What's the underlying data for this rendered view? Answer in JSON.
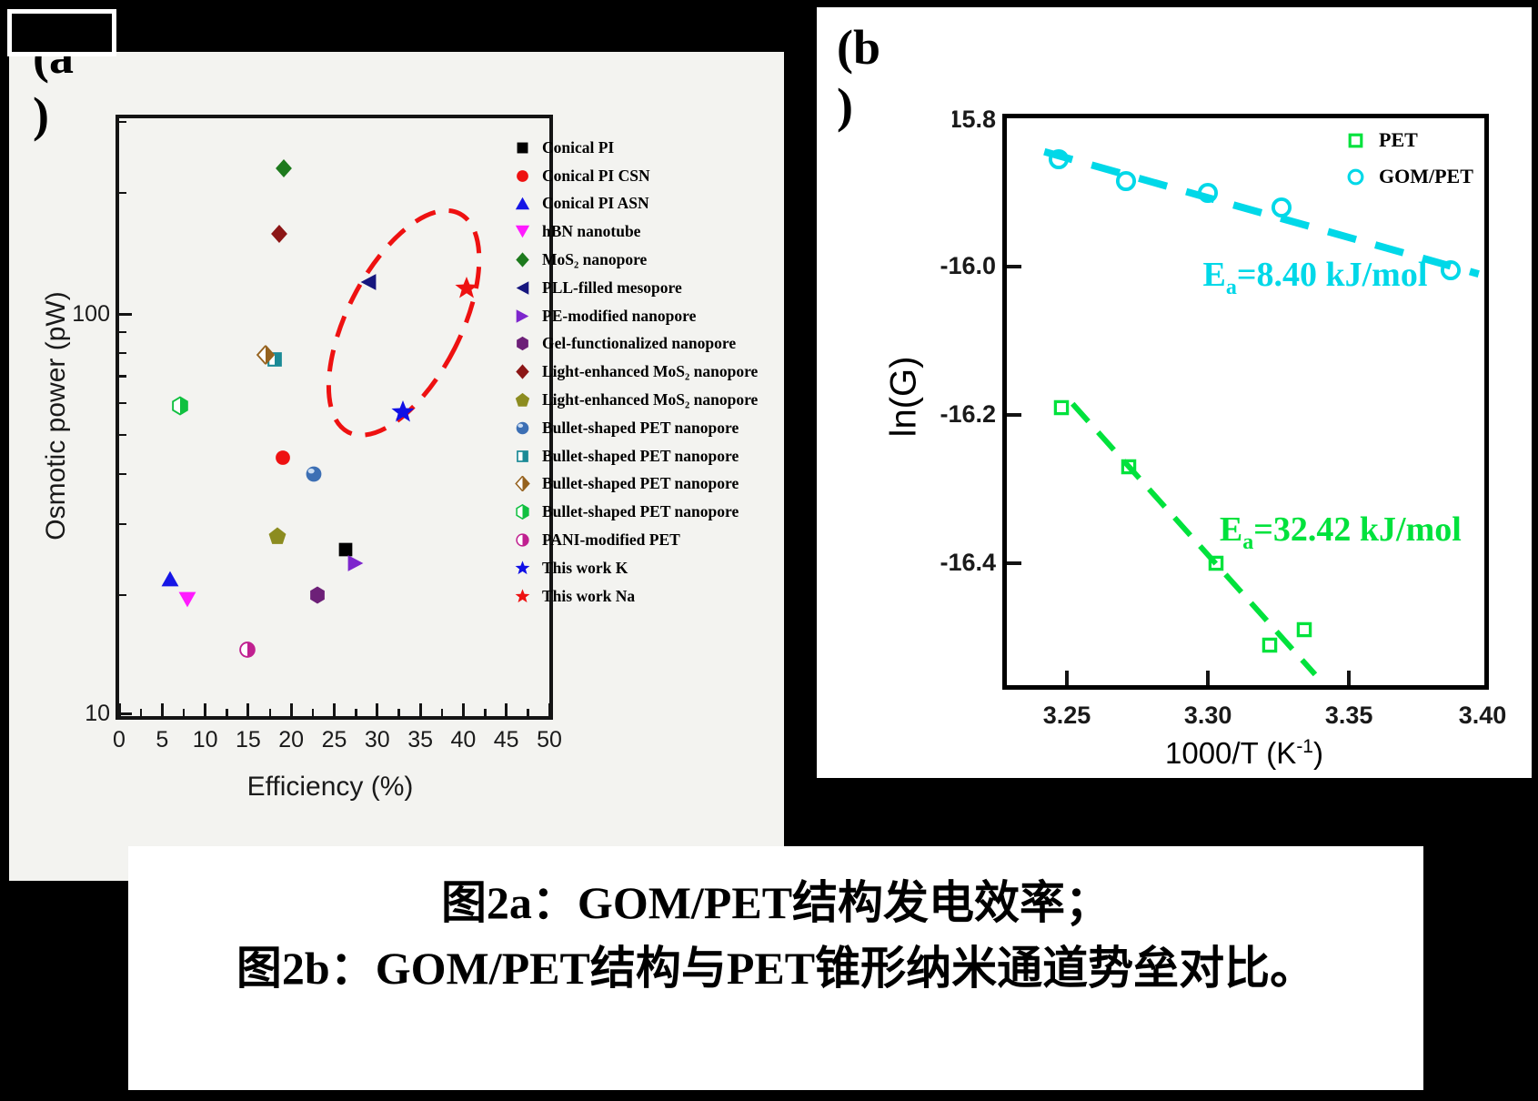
{
  "figure": {
    "panel_a_tag": {
      "line1": "(a",
      "line2": ")"
    },
    "panel_b_tag": {
      "line1": "(b",
      "line2": ")"
    }
  },
  "caption": {
    "line1": "图2a：GOM/PET结构发电效率；",
    "line2": "图2b：GOM/PET结构与PET锥形纳米通道势垒对比。"
  },
  "colors": {
    "background": "#000000",
    "panel_a_bg": "#f3f3f0",
    "panel_b_bg": "#ffffff",
    "highlight_red": "#ee1111",
    "pet_green": "#00e23c",
    "gom_pet_cyan": "#00d8e8"
  },
  "chart_data": [
    {
      "id": "a",
      "type": "scatter",
      "xlabel": "Efficiency (%)",
      "ylabel": "Osmotic power (pW)",
      "xlim": [
        0,
        50
      ],
      "x_ticks": [
        0,
        5,
        10,
        15,
        20,
        25,
        30,
        35,
        40,
        45,
        50
      ],
      "x_minor_ticks": [
        2.5,
        7.5,
        12.5,
        17.5,
        22.5,
        27.5,
        32.5,
        37.5,
        42.5,
        47.5
      ],
      "y_scale": "log",
      "ylim": [
        10,
        306
      ],
      "y_major_ticks": [
        10,
        100
      ],
      "y_minor_ticks": [
        20,
        30,
        40,
        50,
        60,
        70,
        80,
        90,
        200,
        300
      ],
      "points": [
        {
          "label": "Conical PI",
          "marker": "square",
          "color": "#000000",
          "x": 26.3,
          "y": 26
        },
        {
          "label": "Conical PI CSN",
          "marker": "circle",
          "color": "#ee1111",
          "x": 19.0,
          "y": 44
        },
        {
          "label": "Conical PI ASN",
          "marker": "triangle-up",
          "color": "#1616e6",
          "x": 5.9,
          "y": 22
        },
        {
          "label": "hBN nanotube",
          "marker": "triangle-down",
          "color": "#ff1aff",
          "x": 7.9,
          "y": 19.5
        },
        {
          "label": "MoS₂ nanopore",
          "marker": "diamond",
          "color": "#1d7a1d",
          "x": 19.1,
          "y": 230
        },
        {
          "label": "PLL-filled mesopore",
          "marker": "triangle-left",
          "color": "#16167e",
          "x": 29.0,
          "y": 120
        },
        {
          "label": "PE-modified nanopore",
          "marker": "triangle-right",
          "color": "#7d26cd",
          "x": 27.5,
          "y": 24
        },
        {
          "label": "Gel-functionalized nanopore",
          "marker": "hexagon",
          "color": "#6d2078",
          "x": 23.0,
          "y": 20
        },
        {
          "label": "Light-enhanced MoS₂ nanopore",
          "marker": "diamond",
          "color": "#8c1616",
          "x": 18.6,
          "y": 158
        },
        {
          "label": "Light-enhanced MoS₂ nanopore",
          "marker": "pentagon",
          "color": "#8c8c20",
          "x": 18.4,
          "y": 28
        },
        {
          "label": "Bullet-shaped PET nanopore",
          "marker": "sphere",
          "color": "#3c6fb4",
          "x": 22.6,
          "y": 40
        },
        {
          "label": "Bullet-shaped PET nanopore",
          "marker": "half-square",
          "color": "#1b8a96",
          "x": 18.1,
          "y": 77
        },
        {
          "label": "Bullet-shaped PET nanopore",
          "marker": "half-diamond",
          "color": "#96621e",
          "x": 17.0,
          "y": 79
        },
        {
          "label": "Bullet-shaped PET nanopore",
          "marker": "half-hexagon",
          "color": "#10c040",
          "x": 7.1,
          "y": 59
        },
        {
          "label": "PANI-modified PET",
          "marker": "half-circle",
          "color": "#c02090",
          "x": 14.9,
          "y": 14.6
        },
        {
          "label": "This work K",
          "marker": "star",
          "color": "#1010e6",
          "x": 33.0,
          "y": 57
        },
        {
          "label": "This work Na",
          "marker": "star",
          "color": "#ee1111",
          "x": 40.4,
          "y": 116
        }
      ],
      "highlight_ellipse": {
        "color": "#ee1111",
        "cx_eff": 33.1,
        "cy_pw": 95,
        "rx_eff": 6.6,
        "ry_decades": 0.305,
        "rotation_deg": 27
      }
    },
    {
      "id": "b",
      "type": "scatter",
      "xlabel_parts": {
        "main": "1000/T (K",
        "sup": "-1",
        "close": ")"
      },
      "ylabel": "ln(G)",
      "xlim": [
        3.2287,
        3.398
      ],
      "x_tick_labels": [
        "3.25",
        "3.30",
        "3.35",
        "3.40"
      ],
      "x_tick_values": [
        3.25,
        3.3,
        3.35,
        3.4
      ],
      "ylim": [
        -16.565,
        -15.8
      ],
      "y_ticks": [
        {
          "v": -15.8,
          "label": "15.8",
          "clipped": true
        },
        {
          "v": -16.0,
          "label": "-16.0",
          "clipped": false
        },
        {
          "v": -16.2,
          "label": "-16.2",
          "clipped": false
        },
        {
          "v": -16.4,
          "label": "-16.4",
          "clipped": false
        }
      ],
      "legend": [
        {
          "name": "PET",
          "marker": "open-square",
          "color": "#00e23c"
        },
        {
          "name": "GOM/PET",
          "marker": "open-circle",
          "color": "#00d8e8"
        }
      ],
      "series": [
        {
          "name": "PET",
          "marker": "open-square",
          "color": "#00e23c",
          "points": [
            [
              3.248,
              -16.19
            ],
            [
              3.272,
              -16.27
            ],
            [
              3.303,
              -16.4
            ],
            [
              3.322,
              -16.51
            ],
            [
              3.334,
              -16.49
            ]
          ],
          "fit_line": [
            [
              3.252,
              -16.185
            ],
            [
              3.338,
              -16.55
            ]
          ],
          "annotation": {
            "base": "E",
            "sub": "a",
            "rest": "=32.42 kJ/mol",
            "x": 3.347,
            "y": -16.358
          }
        },
        {
          "name": "GOM/PET",
          "marker": "open-circle",
          "color": "#00d8e8",
          "points": [
            [
              3.247,
              -15.855
            ],
            [
              3.271,
              -15.885
            ],
            [
              3.3,
              -15.9
            ],
            [
              3.326,
              -15.92
            ],
            [
              3.386,
              -16.005
            ]
          ],
          "fit_line": [
            [
              3.242,
              -15.845
            ],
            [
              3.396,
              -16.01
            ]
          ],
          "annotation": {
            "base": "E",
            "sub": "a",
            "rest": "=8.40 kJ/mol",
            "x": 3.338,
            "y": -16.015
          }
        }
      ]
    }
  ]
}
